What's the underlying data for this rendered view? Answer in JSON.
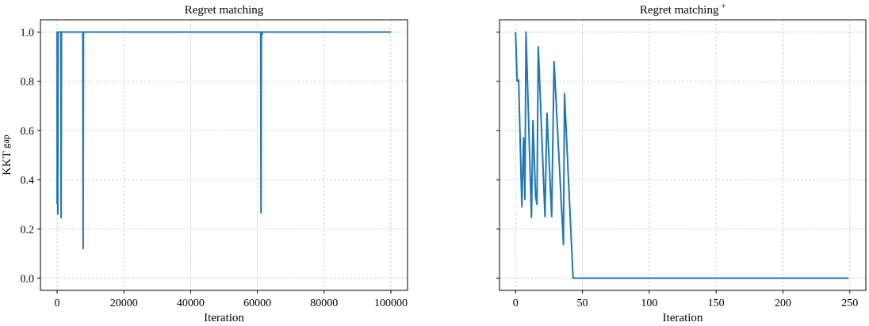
{
  "figure": {
    "line_color": "#1f77b4",
    "grid_color": "#c8c8c8"
  },
  "chart_data": [
    {
      "type": "line",
      "title": "Regret matching",
      "xlabel": "Iteration",
      "ylabel": "KKT gap",
      "xlim": [
        -5000,
        105000
      ],
      "ylim": [
        -0.05,
        1.05
      ],
      "xticks": [
        0,
        20000,
        40000,
        60000,
        80000,
        100000
      ],
      "xtick_labels": [
        "0",
        "20000",
        "40000",
        "60000",
        "80000",
        "100000"
      ],
      "yticks": [
        0.0,
        0.2,
        0.4,
        0.6,
        0.8,
        1.0
      ],
      "ytick_labels": [
        "0.0",
        "0.2",
        "0.4",
        "0.6",
        "0.8",
        "1.0"
      ],
      "grid": true,
      "series": [
        {
          "name": "KKT gap",
          "x": [
            0,
            0,
            100,
            200,
            300,
            1100,
            1200,
            1300,
            7700,
            7800,
            7900,
            61000,
            61100,
            61200,
            61400,
            61500,
            100000
          ],
          "y": [
            0.3,
            1.0,
            1.0,
            0.26,
            1.0,
            1.0,
            0.245,
            1.0,
            1.0,
            0.12,
            1.0,
            1.0,
            0.265,
            1.0,
            0.99,
            1.0,
            1.0
          ]
        }
      ]
    },
    {
      "type": "line",
      "title": "Regret matching",
      "title_superscript": "+",
      "xlabel": "Iteration",
      "ylabel": "",
      "xlim": [
        -12,
        262
      ],
      "ylim": [
        -0.05,
        1.05
      ],
      "xticks": [
        0,
        50,
        100,
        150,
        200,
        250
      ],
      "xtick_labels": [
        "0",
        "50",
        "100",
        "150",
        "200",
        "250"
      ],
      "yticks": [
        0.0,
        0.2,
        0.4,
        0.6,
        0.8,
        1.0
      ],
      "ytick_labels": [
        "",
        "",
        "",
        "",
        "",
        ""
      ],
      "grid": true,
      "series": [
        {
          "name": "KKT gap",
          "x": [
            0,
            1.2,
            2.3,
            4.7,
            6,
            7,
            7.8,
            11.9,
            13,
            15,
            16,
            17,
            22,
            23.5,
            27,
            28.8,
            35.8,
            36.6,
            43,
            249
          ],
          "y": [
            1.0,
            0.8,
            0.805,
            0.29,
            0.57,
            0.32,
            1.0,
            0.247,
            0.64,
            0.33,
            0.3,
            0.94,
            0.25,
            0.67,
            0.25,
            0.88,
            0.136,
            0.75,
            0.0,
            0.0
          ]
        }
      ]
    }
  ]
}
